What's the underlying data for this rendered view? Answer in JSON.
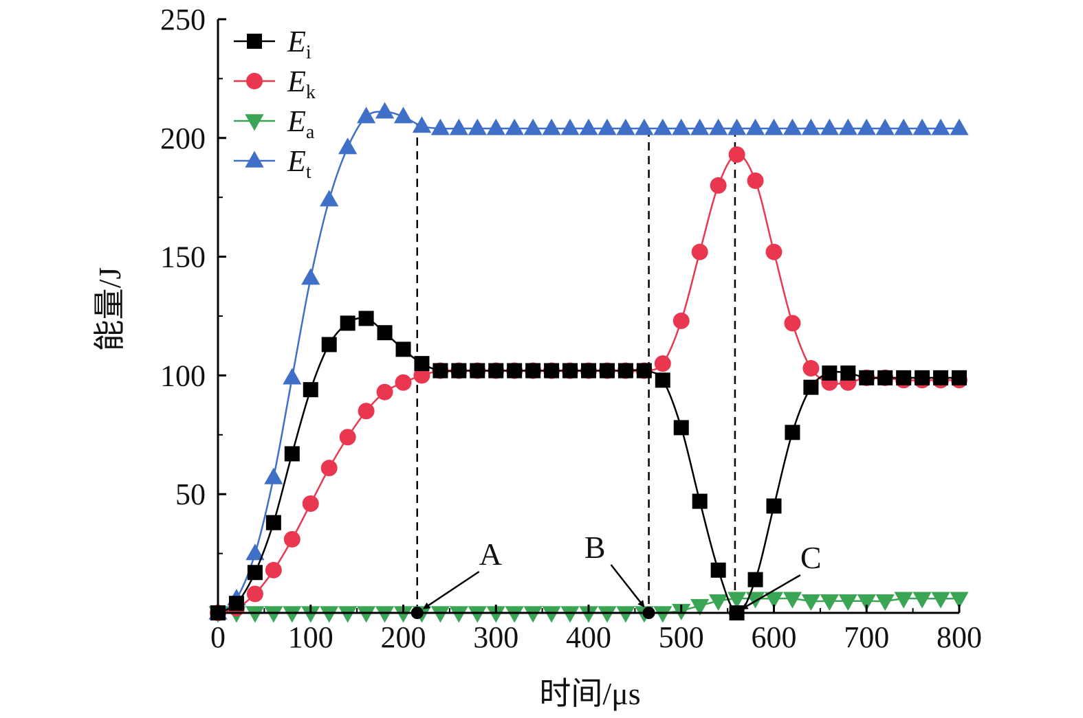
{
  "chart_data": {
    "type": "line",
    "xlabel": "时间/μs",
    "ylabel": "能量/J",
    "xlim": [
      0,
      800
    ],
    "ylim": [
      0,
      250
    ],
    "x_ticks": [
      0,
      100,
      200,
      300,
      400,
      500,
      600,
      700,
      800
    ],
    "y_ticks": [
      50,
      100,
      150,
      200,
      250
    ],
    "grid": false,
    "legend_position": "top-left",
    "x": [
      0,
      20,
      40,
      60,
      80,
      100,
      120,
      140,
      160,
      180,
      200,
      220,
      240,
      260,
      280,
      300,
      320,
      340,
      360,
      380,
      400,
      420,
      440,
      460,
      480,
      500,
      520,
      540,
      560,
      580,
      600,
      620,
      640,
      660,
      680,
      700,
      720,
      740,
      760,
      780,
      800
    ],
    "series": [
      {
        "name": "E",
        "subscript": "i",
        "color": "#000000",
        "marker": "square",
        "values": [
          0,
          4,
          17,
          38,
          67,
          94,
          113,
          122,
          124,
          118,
          111,
          105,
          102,
          102,
          102,
          102,
          102,
          102,
          102,
          102,
          102,
          102,
          102,
          102,
          98,
          78,
          47,
          18,
          0,
          14,
          45,
          76,
          95,
          101,
          101,
          99,
          99,
          99,
          99,
          99,
          99
        ]
      },
      {
        "name": "E",
        "subscript": "k",
        "color": "#e8374f",
        "marker": "circle",
        "values": [
          0,
          2,
          8,
          18,
          31,
          46,
          61,
          74,
          85,
          93,
          97,
          100,
          102,
          102,
          102,
          102,
          102,
          102,
          102,
          102,
          102,
          102,
          102,
          102,
          105,
          123,
          152,
          180,
          193,
          182,
          152,
          122,
          103,
          97,
          97,
          99,
          99,
          98,
          98,
          98,
          98
        ]
      },
      {
        "name": "E",
        "subscript": "a",
        "color": "#3aa655",
        "marker": "triangle-down",
        "values": [
          0,
          0,
          0,
          0,
          0,
          0,
          0,
          0,
          0,
          0,
          0,
          0,
          0,
          0,
          0,
          0,
          0,
          0,
          0,
          0,
          0,
          0,
          0,
          0,
          0,
          1,
          3,
          5,
          6,
          6,
          6,
          6,
          5,
          5,
          5,
          5,
          5,
          6,
          6,
          6,
          6
        ]
      },
      {
        "name": "E",
        "subscript": "t",
        "color": "#3f6fc6",
        "marker": "triangle-up",
        "values": [
          0,
          6,
          25,
          57,
          99,
          141,
          174,
          196,
          209,
          211,
          209,
          205,
          204,
          204,
          204,
          204,
          204,
          204,
          204,
          204,
          204,
          204,
          204,
          204,
          204,
          204,
          204,
          204,
          204,
          204,
          204,
          204,
          204,
          204,
          204,
          204,
          204,
          204,
          204,
          204,
          204
        ]
      }
    ],
    "vlines": [
      215,
      465,
      558
    ],
    "annotations": [
      {
        "label": "A",
        "x": 215,
        "y": 0
      },
      {
        "label": "B",
        "x": 465,
        "y": 0
      },
      {
        "label": "C",
        "x": 558,
        "y": 0
      }
    ]
  }
}
